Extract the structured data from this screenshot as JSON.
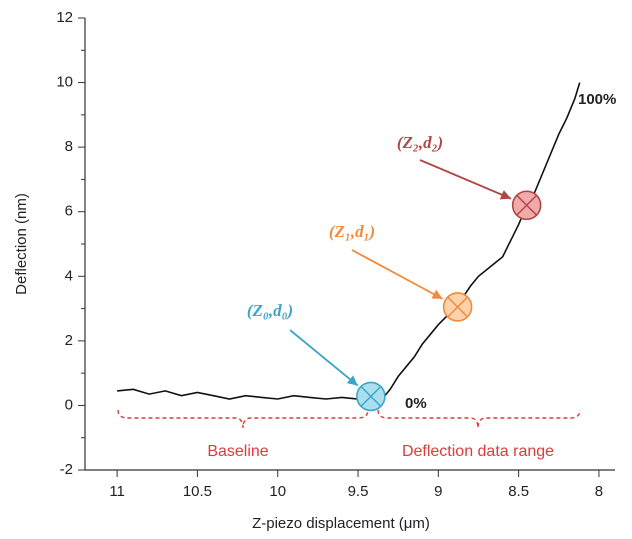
{
  "chart_data": {
    "type": "line",
    "xlabel": "Z-piezo displacement (μm)",
    "ylabel": "Deflection (nm)",
    "xlim": [
      11.2,
      7.9
    ],
    "ylim": [
      -2,
      12
    ],
    "xticks": [
      11,
      10.5,
      10,
      9.5,
      9,
      8.5,
      8
    ],
    "yticks": [
      -2,
      0,
      2,
      4,
      6,
      8,
      10,
      12
    ],
    "x": [
      11.0,
      10.9,
      10.8,
      10.7,
      10.6,
      10.5,
      10.4,
      10.3,
      10.2,
      10.1,
      10.0,
      9.9,
      9.8,
      9.7,
      9.6,
      9.5,
      9.45,
      9.35,
      9.3,
      9.25,
      9.15,
      9.1,
      9.0,
      8.9,
      8.88,
      8.8,
      8.75,
      8.65,
      8.6,
      8.5,
      8.45,
      8.4,
      8.35,
      8.25,
      8.2,
      8.15,
      8.12
    ],
    "series": [
      {
        "color": "#111111",
        "values": [
          0.45,
          0.5,
          0.35,
          0.45,
          0.3,
          0.4,
          0.3,
          0.2,
          0.3,
          0.25,
          0.2,
          0.3,
          0.25,
          0.2,
          0.25,
          0.2,
          0.3,
          0.2,
          0.5,
          0.9,
          1.5,
          1.9,
          2.5,
          3.0,
          3.1,
          3.7,
          4.0,
          4.4,
          4.6,
          5.6,
          6.2,
          6.6,
          7.2,
          8.4,
          8.9,
          9.5,
          10.0
        ]
      }
    ],
    "points": [
      {
        "label": "(Z₀,d₀)",
        "x": 9.42,
        "y": 0.28,
        "color": "#3aa6c6",
        "fill": "#a9dfee"
      },
      {
        "label": "(Z₁,d₁)",
        "x": 8.88,
        "y": 3.05,
        "color": "#f08a3c",
        "fill": "#fcd2ab"
      },
      {
        "label": "(Z₂,d₂)",
        "x": 8.45,
        "y": 6.2,
        "color": "#b04646",
        "fill": "#f2a9a9"
      }
    ],
    "annotations": [
      "100%",
      "0%",
      "Baseline",
      "Deflection data range"
    ]
  }
}
